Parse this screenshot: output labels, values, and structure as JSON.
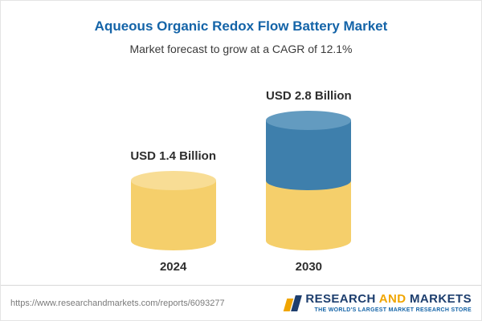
{
  "header": {
    "title": "Aqueous Organic Redox Flow Battery Market",
    "subtitle": "Market forecast to grow at a CAGR of 12.1%"
  },
  "chart_data": {
    "type": "bar",
    "subtype": "stacked-cylinder",
    "categories": [
      "2024",
      "2030"
    ],
    "series": [
      {
        "name": "base-value",
        "values": [
          1.4,
          1.4
        ],
        "color": "#f5cf6b"
      },
      {
        "name": "growth-value",
        "values": [
          0,
          1.4
        ],
        "color": "#3e7fac"
      }
    ],
    "totals": [
      1.4,
      2.8
    ],
    "bar_labels": [
      "USD 1.4 Billion",
      "USD 2.8 Billion"
    ],
    "unit": "USD Billion",
    "cagr": "12.1%",
    "ylim": [
      0,
      3
    ],
    "grid": false,
    "legend": "none",
    "title": "Aqueous Organic Redox Flow Battery Market"
  },
  "footer": {
    "url": "https://www.researchandmarkets.com/reports/6093277",
    "logo": {
      "part1": "RESEARCH ",
      "part2": "AND",
      "part3": " MARKETS",
      "tagline": "THE WORLD'S LARGEST MARKET RESEARCH STORE"
    }
  },
  "colors": {
    "title_blue": "#1464a8",
    "bar_yellow": "#f5cf6b",
    "bar_yellow_top": "#f8dd95",
    "bar_blue": "#3e7fac",
    "bar_blue_top": "#639bc0",
    "logo_navy": "#1d3e6e",
    "logo_orange": "#f0a500"
  }
}
